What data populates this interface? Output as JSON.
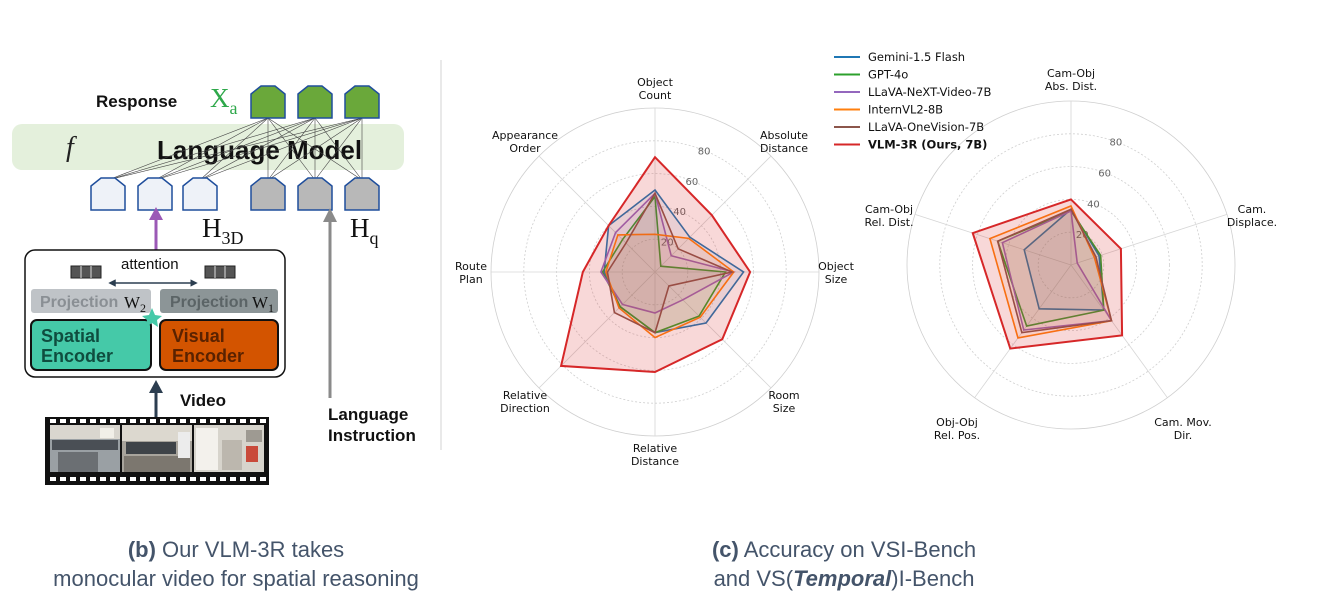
{
  "figure_b": {
    "response_label": "Response",
    "xa_symbol": "X",
    "xa_subscript": "a",
    "f_symbol": "f",
    "language_model_label": "Language Model",
    "h3d_symbol": "H",
    "h3d_subscript": "3D",
    "hq_symbol": "H",
    "hq_subscript": "q",
    "attention_label": "attention",
    "projection_left_label": "Projection",
    "w2_symbol": "W",
    "w2_subscript": "2",
    "projection_right_label": "Projection",
    "w1_symbol": "W",
    "w1_subscript": "1",
    "spatial_encoder_line1": "Spatial",
    "spatial_encoder_line2": "Encoder",
    "visual_encoder_line1": "Visual",
    "visual_encoder_line2": "Encoder",
    "video_label": "Video",
    "language_instruction_line1": "Language",
    "language_instruction_line2": "Instruction",
    "caption_prefix": "(b)",
    "caption_line1": " Our VLM-3R takes",
    "caption_line2": "monocular video for spatial reasoning",
    "colors": {
      "response_token": "#6aa83a",
      "h3d_token": "#eef2f8",
      "hq_token": "#b8b8b8",
      "language_model_band": "#e4f0dc",
      "spatial_encoder": "#45c9a8",
      "visual_encoder": "#d35400",
      "projection_left": "#bfc3c7",
      "projection_right": "#8c9597",
      "arrow_purple": "#9b59b6",
      "arrow_gray": "#8a8a8a",
      "arrow_dark": "#2c3e50",
      "xa_green": "#2ea84a"
    }
  },
  "caption_c": {
    "prefix": "(c)",
    "line1": " Accuracy on VSI-Bench",
    "line2_pre": "and VS(",
    "line2_em": "Temporal",
    "line2_post": ")I-Bench"
  },
  "chart_data": [
    {
      "type": "radar",
      "title": "",
      "axes": [
        "Object Count",
        "Absolute Distance",
        "Object Size",
        "Room Size",
        "Relative Distance",
        "Relative Direction",
        "Route Plan",
        "Appearance Order"
      ],
      "ticks": [
        20,
        40,
        60,
        80
      ],
      "range": [
        0,
        100
      ],
      "series": [
        {
          "name": "Gemini-1.5 Flash",
          "color": "#1f77b4",
          "values": [
            50,
            30,
            54,
            44,
            37,
            30,
            31,
            40
          ]
        },
        {
          "name": "GPT-4o",
          "color": "#2ca02c",
          "values": [
            46,
            5,
            43,
            38,
            37,
            30,
            32,
            28
          ]
        },
        {
          "name": "LLaVA-NeXT-Video-7B",
          "color": "#9467bd",
          "values": [
            48,
            14,
            48,
            24,
            25,
            28,
            33,
            34
          ]
        },
        {
          "name": "InternVL2-8B",
          "color": "#ff7f0e",
          "values": [
            23,
            29,
            48,
            39,
            40,
            31,
            30,
            32
          ]
        },
        {
          "name": "LLaVA-OneVision-7B",
          "color": "#8c564b",
          "values": [
            48,
            20,
            47,
            12,
            37,
            35,
            29,
            25
          ]
        },
        {
          "name": "VLM-3R (Ours, 7B)",
          "color": "#d62728",
          "values": [
            70,
            49,
            58,
            58,
            61,
            81,
            44,
            40
          ]
        }
      ],
      "legend": "top-right"
    },
    {
      "type": "radar",
      "title": "",
      "axes": [
        "Cam-Obj Abs. Dist.",
        "Cam. Displace.",
        "Cam. Mov. Dir.",
        "Obj-Obj Rel. Pos.",
        "Cam-Obj Rel. Dist."
      ],
      "ticks": [
        20,
        40,
        60,
        80
      ],
      "range": [
        0,
        100
      ],
      "series": [
        {
          "name": "Gemini-1.5 Flash",
          "color": "#1f77b4",
          "values": [
            34,
            18,
            34,
            33,
            30
          ]
        },
        {
          "name": "GPT-4o",
          "color": "#2ca02c",
          "values": [
            33,
            19,
            34,
            46,
            47
          ]
        },
        {
          "name": "LLaVA-NeXT-Video-7B",
          "color": "#9467bd",
          "values": [
            33,
            4,
            42,
            49,
            44
          ]
        },
        {
          "name": "InternVL2-8B",
          "color": "#ff7f0e",
          "values": [
            36,
            15,
            42,
            55,
            52
          ]
        },
        {
          "name": "LLaVA-OneVision-7B",
          "color": "#8c564b",
          "values": [
            34,
            16,
            42,
            51,
            47
          ]
        },
        {
          "name": "VLM-3R (Ours, 7B)",
          "color": "#d62728",
          "values": [
            40,
            32,
            53,
            63,
            63
          ]
        }
      ]
    }
  ]
}
